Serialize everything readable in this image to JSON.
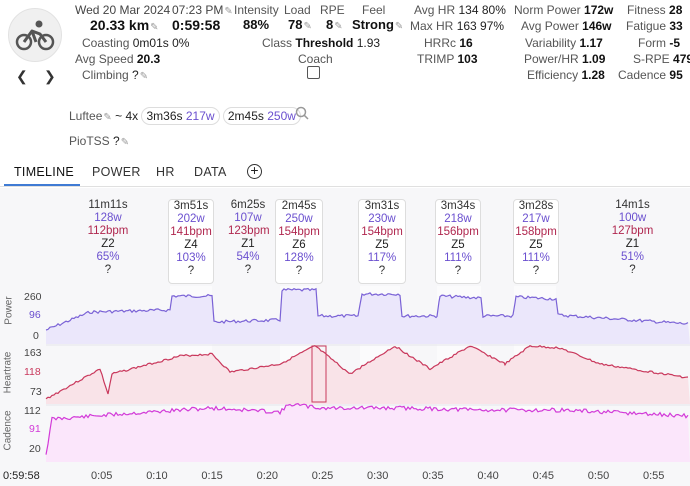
{
  "activity": {
    "date": "Wed 20 Mar 2024",
    "time": "07:23 PM",
    "distance": "20.33 km",
    "duration": "0:59:58",
    "coasting_label": "Coasting",
    "coasting_value": "0m01s 0%",
    "avg_speed_label": "Avg Speed",
    "avg_speed_value": "20.3",
    "type_label": "Climbing",
    "type_value": "?"
  },
  "metrics": {
    "intensity_label": "Intensity",
    "intensity_value": "88%",
    "load_label": "Load",
    "load_value": "78",
    "rpe_label": "RPE",
    "rpe_value": "8",
    "feel_label": "Feel",
    "feel_value": "Strong",
    "class_label": "Class",
    "class_value": "Threshold",
    "class_num": "1.93",
    "coach_label": "Coach",
    "avg_hr_label": "Avg HR",
    "avg_hr_value": "134 80%",
    "max_hr_label": "Max HR",
    "max_hr_value": "163 97%",
    "hrrc_label": "HRRc",
    "hrrc_value": "16",
    "trimp_label": "TRIMP",
    "trimp_value": "103",
    "norm_power_label": "Norm Power",
    "norm_power_value": "172w",
    "avg_power_label": "Avg Power",
    "avg_power_value": "146w",
    "variability_label": "Variability",
    "variability_value": "1.17",
    "power_hr_label": "Power/HR",
    "power_hr_value": "1.09",
    "efficiency_label": "Efficiency",
    "efficiency_value": "1.28",
    "fitness_label": "Fitness",
    "fitness_value": "28",
    "fatigue_label": "Fatigue",
    "fatigue_value": "33",
    "form_label": "Form",
    "form_value": "-5",
    "srpe_label": "S-RPE",
    "srpe_value": "479",
    "cadence_label": "Cadence",
    "cadence_value": "95"
  },
  "luftee": {
    "label": "Luftee",
    "prefix": "~ 4x",
    "chip1_time": "3m36s",
    "chip1_power": "217w",
    "chip2_time": "2m45s",
    "chip2_power": "250w"
  },
  "piotss": {
    "label": "PioTSS",
    "value": "?"
  },
  "tabs": [
    "TIMELINE",
    "POWER",
    "HR",
    "DATA"
  ],
  "intervals": [
    {
      "dur": "11m11s",
      "pw": "128w",
      "hr": "112bpm",
      "zone": "Z2",
      "pct": "65%",
      "q": "?"
    },
    {
      "dur": "3m51s",
      "pw": "202w",
      "hr": "141bpm",
      "zone": "Z4",
      "pct": "103%",
      "q": "?"
    },
    {
      "dur": "6m25s",
      "pw": "107w",
      "hr": "123bpm",
      "zone": "Z1",
      "pct": "54%",
      "q": "?"
    },
    {
      "dur": "2m45s",
      "pw": "250w",
      "hr": "154bpm",
      "zone": "Z6",
      "pct": "128%",
      "q": "?"
    },
    {
      "dur": "3m31s",
      "pw": "230w",
      "hr": "154bpm",
      "zone": "Z5",
      "pct": "117%",
      "q": "?"
    },
    {
      "dur": "3m34s",
      "pw": "218w",
      "hr": "156bpm",
      "zone": "Z5",
      "pct": "111%",
      "q": "?"
    },
    {
      "dur": "3m28s",
      "pw": "217w",
      "hr": "158bpm",
      "zone": "Z5",
      "pct": "111%",
      "q": "?"
    },
    {
      "dur": "14m1s",
      "pw": "100w",
      "hr": "127bpm",
      "zone": "Z1",
      "pct": "51%",
      "q": "?"
    }
  ],
  "charts": {
    "power": {
      "label": "Power",
      "ticks": [
        "260",
        "96",
        "0"
      ],
      "color": "#7a62d6"
    },
    "heartrate": {
      "label": "Heartrate",
      "ticks": [
        "163",
        "118",
        "73"
      ],
      "color": "#c9385c"
    },
    "cadence": {
      "label": "Cadence",
      "ticks": [
        "112",
        "91",
        "20"
      ],
      "color": "#d23ad8"
    }
  },
  "x_axis": {
    "start": "0:59:58",
    "ticks": [
      "0:05",
      "0:10",
      "0:15",
      "0:20",
      "0:25",
      "0:30",
      "0:35",
      "0:40",
      "0:45",
      "0:50",
      "0:55"
    ]
  }
}
